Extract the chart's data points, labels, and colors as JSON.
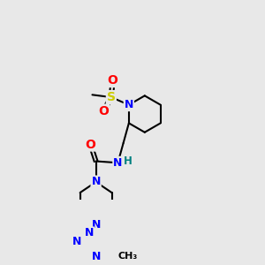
{
  "bg_color": "#e8e8e8",
  "atom_colors": {
    "N": "#0000ff",
    "O": "#ff0000",
    "S": "#cccc00",
    "H": "#008080"
  },
  "bond_color": "#000000",
  "bond_width": 1.5
}
